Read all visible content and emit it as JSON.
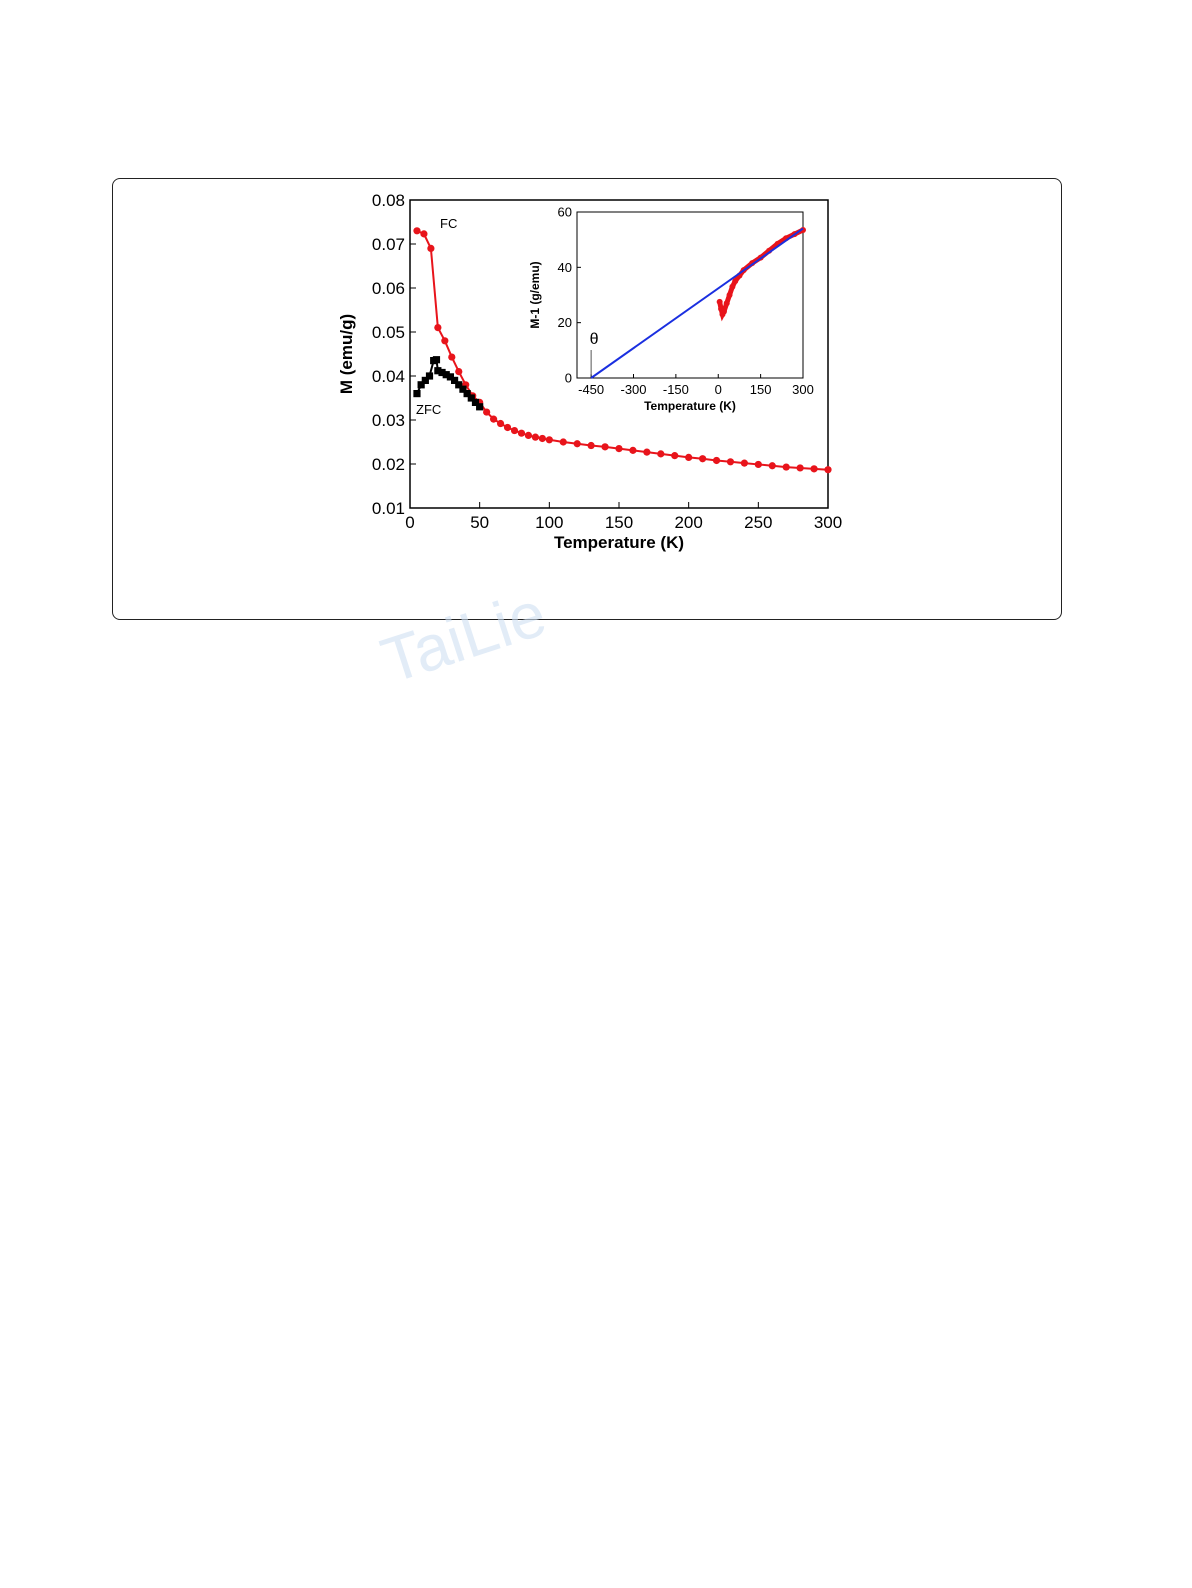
{
  "watermark": "TaiLie",
  "chart_data": [
    {
      "type": "line",
      "xlabel": "Temperature (K)",
      "ylabel": "M (emu/g)",
      "xlim": [
        0,
        300
      ],
      "ylim": [
        0.01,
        0.08
      ],
      "xticks": [
        "0",
        "50",
        "100",
        "150",
        "200",
        "250",
        "300"
      ],
      "yticks": [
        "0.01",
        "0.02",
        "0.03",
        "0.04",
        "0.05",
        "0.06",
        "0.07",
        "0.08"
      ],
      "grid": false,
      "series": [
        {
          "name": "FC",
          "color": "#e8141b",
          "marker": "circle",
          "x": [
            5,
            10,
            15,
            20,
            25,
            30,
            35,
            40,
            45,
            50,
            55,
            60,
            65,
            70,
            75,
            80,
            85,
            90,
            95,
            100,
            110,
            120,
            130,
            140,
            150,
            160,
            170,
            180,
            190,
            200,
            210,
            220,
            230,
            240,
            250,
            260,
            270,
            280,
            290,
            300
          ],
          "y": [
            0.073,
            0.0723,
            0.069,
            0.051,
            0.048,
            0.0443,
            0.041,
            0.038,
            0.0355,
            0.034,
            0.0318,
            0.0302,
            0.0292,
            0.0283,
            0.0276,
            0.027,
            0.0265,
            0.0261,
            0.0258,
            0.0255,
            0.025,
            0.0246,
            0.0242,
            0.0239,
            0.0235,
            0.0231,
            0.0227,
            0.0223,
            0.0219,
            0.0215,
            0.0212,
            0.0208,
            0.0205,
            0.0202,
            0.0199,
            0.0196,
            0.0193,
            0.0191,
            0.0189,
            0.0187
          ]
        },
        {
          "name": "ZFC",
          "color": "#000000",
          "marker": "square",
          "x": [
            5,
            8,
            11,
            14,
            17,
            19,
            20,
            23,
            26,
            29,
            32,
            35,
            38,
            41,
            44,
            47,
            50
          ],
          "y": [
            0.036,
            0.038,
            0.039,
            0.04,
            0.0435,
            0.0437,
            0.0412,
            0.0408,
            0.0403,
            0.0398,
            0.039,
            0.038,
            0.037,
            0.036,
            0.035,
            0.034,
            0.033
          ]
        }
      ]
    },
    {
      "type": "line",
      "xlabel": "Temperature (K)",
      "ylabel": "M-1 (g/emu)",
      "xlim": [
        -500,
        300
      ],
      "ylim": [
        0,
        60
      ],
      "xticks": [
        "-450",
        "-300",
        "-150",
        "0",
        "150",
        "300"
      ],
      "yticks": [
        "0",
        "20",
        "40",
        "60"
      ],
      "annotation": "θ",
      "series": [
        {
          "color": "#e8141b",
          "marker": "circle",
          "x": [
            5,
            10,
            15,
            20,
            30,
            40,
            50,
            60,
            75,
            90,
            120,
            150,
            180,
            210,
            240,
            270,
            300
          ],
          "y": [
            27.5,
            25,
            23,
            24,
            27,
            30,
            33,
            35,
            37,
            39,
            41.5,
            43.5,
            46,
            48.5,
            50.5,
            52,
            53.5
          ]
        },
        {
          "color": "#1a2fe0",
          "marker": "none",
          "x": [
            -450,
            300
          ],
          "y": [
            0,
            54
          ]
        }
      ]
    }
  ]
}
